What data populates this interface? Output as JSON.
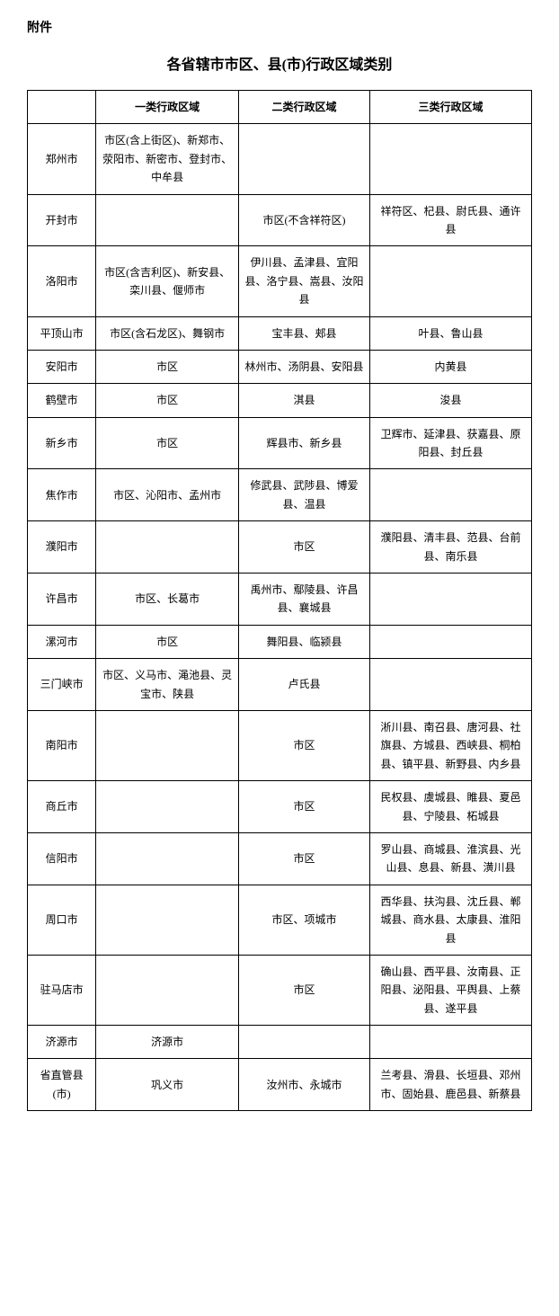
{
  "attachment_label": "附件",
  "page_title": "各省辖市市区、县(市)行政区域类别",
  "columns": {
    "blank": "",
    "cat1": "一类行政区域",
    "cat2": "二类行政区域",
    "cat3": "三类行政区域"
  },
  "rows": [
    {
      "city": "郑州市",
      "cat1": "市区(含上街区)、新郑市、荥阳市、新密市、登封市、中牟县",
      "cat2": "",
      "cat3": ""
    },
    {
      "city": "开封市",
      "cat1": "",
      "cat2": "市区(不含祥符区)",
      "cat3": "祥符区、杞县、尉氏县、通许县"
    },
    {
      "city": "洛阳市",
      "cat1": "市区(含吉利区)、新安县、栾川县、偃师市",
      "cat2": "伊川县、孟津县、宜阳县、洛宁县、嵩县、汝阳县",
      "cat3": ""
    },
    {
      "city": "平顶山市",
      "cat1": "市区(含石龙区)、舞钢市",
      "cat2": "宝丰县、郏县",
      "cat3": "叶县、鲁山县"
    },
    {
      "city": "安阳市",
      "cat1": "市区",
      "cat2": "林州市、汤阴县、安阳县",
      "cat3": "内黄县"
    },
    {
      "city": "鹤壁市",
      "cat1": "市区",
      "cat2": "淇县",
      "cat3": "浚县"
    },
    {
      "city": "新乡市",
      "cat1": "市区",
      "cat2": "辉县市、新乡县",
      "cat3": "卫辉市、延津县、获嘉县、原阳县、封丘县"
    },
    {
      "city": "焦作市",
      "cat1": "市区、沁阳市、孟州市",
      "cat2": "修武县、武陟县、博爱县、温县",
      "cat3": ""
    },
    {
      "city": "濮阳市",
      "cat1": "",
      "cat2": "市区",
      "cat3": "濮阳县、清丰县、范县、台前县、南乐县"
    },
    {
      "city": "许昌市",
      "cat1": "市区、长葛市",
      "cat2": "禹州市、鄢陵县、许昌县、襄城县",
      "cat3": ""
    },
    {
      "city": "漯河市",
      "cat1": "市区",
      "cat2": "舞阳县、临颍县",
      "cat3": ""
    },
    {
      "city": "三门峡市",
      "cat1": "市区、义马市、渑池县、灵宝市、陕县",
      "cat2": "卢氏县",
      "cat3": ""
    },
    {
      "city": "南阳市",
      "cat1": "",
      "cat2": "市区",
      "cat3": "淅川县、南召县、唐河县、社旗县、方城县、西峡县、桐柏县、镇平县、新野县、内乡县"
    },
    {
      "city": "商丘市",
      "cat1": "",
      "cat2": "市区",
      "cat3": "民权县、虞城县、睢县、夏邑县、宁陵县、柘城县"
    },
    {
      "city": "信阳市",
      "cat1": "",
      "cat2": "市区",
      "cat3": "罗山县、商城县、淮滨县、光山县、息县、新县、潢川县"
    },
    {
      "city": "周口市",
      "cat1": "",
      "cat2": "市区、项城市",
      "cat3": "西华县、扶沟县、沈丘县、郸城县、商水县、太康县、淮阳县"
    },
    {
      "city": "驻马店市",
      "cat1": "",
      "cat2": "市区",
      "cat3": "确山县、西平县、汝南县、正阳县、泌阳县、平舆县、上蔡县、遂平县"
    },
    {
      "city": "济源市",
      "cat1": "济源市",
      "cat2": "",
      "cat3": ""
    },
    {
      "city": "省直管县(市)",
      "cat1": "巩义市",
      "cat2": "汝州市、永城市",
      "cat3": "兰考县、滑县、长垣县、邓州市、固始县、鹿邑县、新蔡县"
    }
  ]
}
